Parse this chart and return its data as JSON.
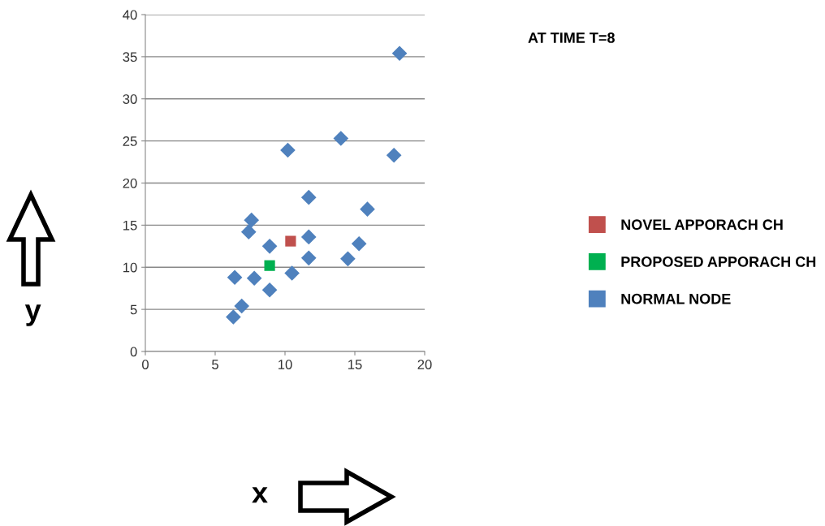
{
  "chart_data": {
    "type": "scatter",
    "xlabel": "x",
    "ylabel": "y",
    "annotations": [
      "AT TIME T=8"
    ],
    "xlim": [
      0,
      20
    ],
    "ylim": [
      0,
      40
    ],
    "xticks": [
      0,
      5,
      10,
      15,
      20
    ],
    "yticks": [
      0,
      5,
      10,
      15,
      20,
      25,
      30,
      35,
      40
    ],
    "grid": "y",
    "legend": "right",
    "series": [
      {
        "name": "NOVEL APPORACH CH",
        "color": "#c0504d",
        "marker": "square",
        "x": [
          10.4
        ],
        "values": [
          13.1
        ]
      },
      {
        "name": "PROPOSED APPORACH CH",
        "color": "#00b050",
        "marker": "square",
        "x": [
          8.9
        ],
        "values": [
          10.2
        ]
      },
      {
        "name": "NORMAL NODE",
        "color": "#4f81bd",
        "marker": "diamond",
        "x": [
          6.9,
          6.3,
          6.4,
          7.8,
          8.9,
          8.9,
          7.4,
          7.6,
          10.5,
          11.7,
          11.7,
          11.7,
          10.2,
          14.0,
          14.5,
          15.3,
          15.9,
          17.8,
          18.2
        ],
        "values": [
          5.4,
          4.1,
          8.8,
          8.7,
          7.3,
          12.5,
          14.2,
          15.6,
          9.3,
          11.1,
          13.6,
          18.3,
          23.9,
          25.3,
          11.0,
          12.8,
          16.9,
          23.3,
          35.4
        ]
      }
    ]
  }
}
